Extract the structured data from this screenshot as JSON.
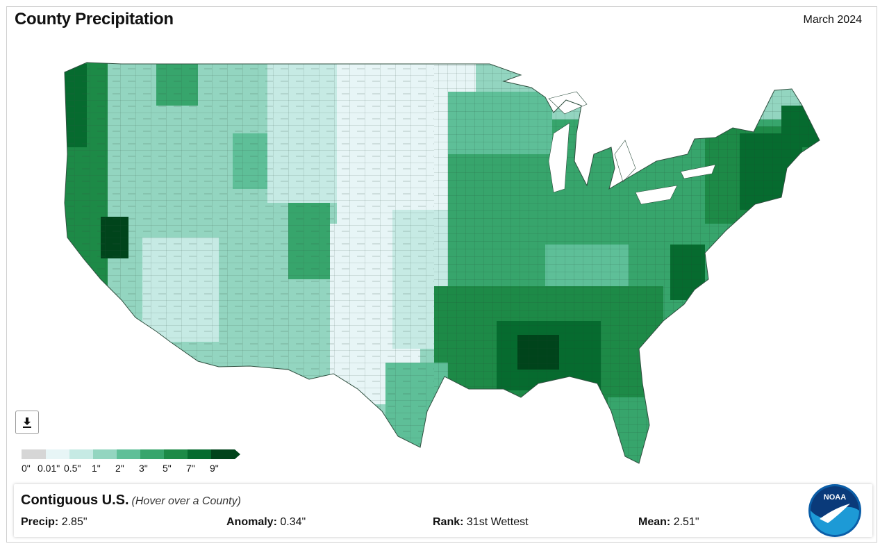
{
  "header": {
    "title": "County Precipitation",
    "date": "March 2024"
  },
  "map": {
    "type": "choropleth",
    "region": "Contiguous U.S.",
    "base_color": "#3aa56e",
    "outline_color": "#2f4f3f"
  },
  "legend": {
    "labels": [
      "0\"",
      "0.01\"",
      "0.5\"",
      "1\"",
      "2\"",
      "3\"",
      "5\"",
      "7\"",
      "9\""
    ],
    "colors": [
      "#d6d6d6",
      "#e7f5f6",
      "#c6eae4",
      "#93d5c0",
      "#5ebf98",
      "#37a56c",
      "#1d8a47",
      "#066b2f",
      "#00441b"
    ]
  },
  "info_panel": {
    "region": "Contiguous U.S.",
    "hint": "(Hover over a County)",
    "precip_label": "Precip:",
    "precip_value": "2.85\"",
    "anomaly_label": "Anomaly:",
    "anomaly_value": "0.34\"",
    "rank_label": "Rank:",
    "rank_value": "31st Wettest",
    "mean_label": "Mean:",
    "mean_value": "2.51\""
  },
  "logo": {
    "text": "NOAA"
  },
  "icons": {
    "download": "download-icon"
  }
}
